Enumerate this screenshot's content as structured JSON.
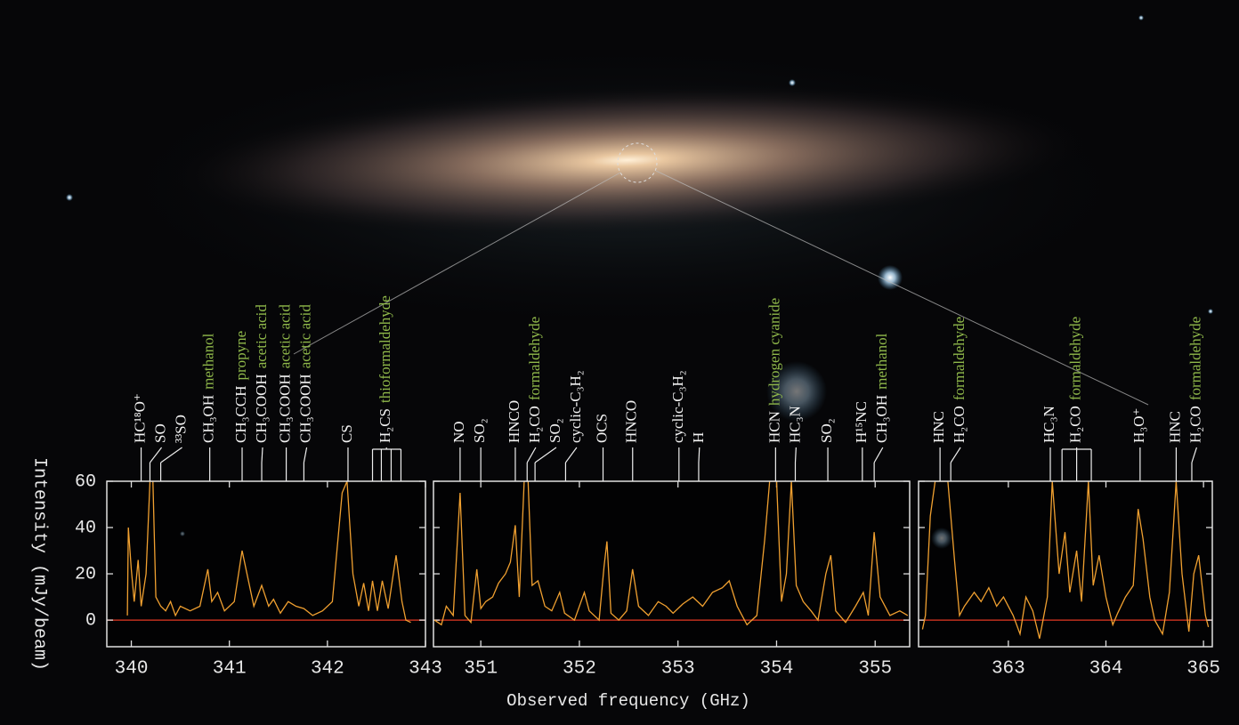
{
  "chart_data": [
    {
      "type": "line",
      "ylabel": "Intensity (mJy/beam)",
      "color": "#f0a030",
      "zero_line_color": "#c0301e",
      "xlim": [
        339.75,
        343.0
      ],
      "xticks": [
        340,
        341,
        342,
        343
      ],
      "ylim": [
        -11.5,
        60
      ],
      "yticks": [
        0,
        20,
        40,
        60
      ],
      "x": [
        339.96,
        339.97,
        340.0,
        340.03,
        340.07,
        340.1,
        340.15,
        340.19,
        340.22,
        340.25,
        340.3,
        340.35,
        340.4,
        340.45,
        340.5,
        340.6,
        340.7,
        340.78,
        340.82,
        340.88,
        340.95,
        341.05,
        341.13,
        341.18,
        341.25,
        341.33,
        341.4,
        341.45,
        341.52,
        341.6,
        341.68,
        341.76,
        341.85,
        341.95,
        342.05,
        342.15,
        342.2,
        342.26,
        342.32,
        342.37,
        342.42,
        342.46,
        342.51,
        342.56,
        342.62,
        342.7,
        342.76,
        342.8,
        342.85
      ],
      "values": [
        2,
        40,
        22,
        8,
        26,
        6,
        20,
        60,
        60,
        10,
        6,
        4,
        8,
        2,
        6,
        4,
        6,
        22,
        8,
        12,
        4,
        8,
        30,
        20,
        6,
        15,
        6,
        9,
        3,
        8,
        6,
        5,
        2,
        4,
        8,
        55,
        60,
        20,
        6,
        16,
        4,
        17,
        4,
        17,
        5,
        28,
        8,
        0,
        -1
      ],
      "lines": [
        {
          "formula": "HC¹⁸O⁺",
          "x": 340.1
        },
        {
          "formula": "SO",
          "x": 340.19
        },
        {
          "formula": "³³SO",
          "x": 340.3
        },
        {
          "formula": "CH₃OH",
          "name": "methanol",
          "x": 340.8
        },
        {
          "formula": "CH₃CCH",
          "name": "propyne",
          "x": 341.13
        },
        {
          "formula": "CH₃COOH",
          "name": "acetic acid",
          "x": 341.33
        },
        {
          "formula": "CH₃COOH",
          "name": "acetic acid",
          "x": 341.58
        },
        {
          "formula": "CH₃COOH",
          "name": "acetic acid",
          "x": 341.76
        },
        {
          "formula": "CS",
          "x": 342.21
        },
        {
          "formula": "H₂CS",
          "name": "thioformaldehyde",
          "x": [
            342.46,
            342.55,
            342.65,
            342.75
          ]
        }
      ]
    },
    {
      "type": "line",
      "xlabel": "Observed frequency (GHz)",
      "color": "#f0a030",
      "zero_line_color": "#c0301e",
      "xlim": [
        350.52,
        355.35
      ],
      "xticks": [
        351,
        352,
        353,
        354,
        355
      ],
      "ylim": [
        -11.5,
        60
      ],
      "yticks": [
        0,
        20,
        40,
        60
      ],
      "x": [
        350.53,
        350.6,
        350.65,
        350.72,
        350.79,
        350.84,
        350.9,
        350.96,
        351.0,
        351.05,
        351.12,
        351.18,
        351.25,
        351.3,
        351.35,
        351.39,
        351.44,
        351.48,
        351.52,
        351.58,
        351.65,
        351.72,
        351.8,
        351.85,
        351.95,
        352.05,
        352.1,
        352.2,
        352.25,
        352.28,
        352.32,
        352.4,
        352.48,
        352.54,
        352.6,
        352.7,
        352.8,
        352.88,
        352.95,
        353.05,
        353.15,
        353.25,
        353.35,
        353.45,
        353.52,
        353.6,
        353.7,
        353.8,
        353.88,
        353.93,
        354.0,
        354.05,
        354.1,
        354.15,
        354.2,
        354.27,
        354.35,
        354.42,
        354.5,
        354.55,
        354.6,
        354.7,
        354.8,
        354.88,
        354.93,
        354.99,
        355.05,
        355.15,
        355.25,
        355.33
      ],
      "values": [
        0,
        -2,
        6,
        2,
        55,
        2,
        -1,
        22,
        5,
        8,
        10,
        16,
        20,
        25,
        41,
        10,
        60,
        60,
        15,
        17,
        6,
        4,
        12,
        3,
        0,
        12,
        4,
        0,
        23,
        34,
        3,
        0,
        4,
        22,
        6,
        2,
        8,
        6,
        3,
        7,
        10,
        6,
        12,
        14,
        17,
        6,
        -2,
        2,
        35,
        60,
        60,
        8,
        20,
        60,
        15,
        8,
        4,
        0,
        20,
        28,
        4,
        -1,
        6,
        12,
        2,
        38,
        10,
        2,
        4,
        2
      ],
      "lines": [
        {
          "formula": "NO",
          "x": 350.79
        },
        {
          "formula": "SO₂",
          "x": 351.0
        },
        {
          "formula": "HNCO",
          "x": 351.35
        },
        {
          "formula": "H₂CO",
          "name": "formaldehyde",
          "x": 351.47
        },
        {
          "formula": "SO₂",
          "x": 351.55
        },
        {
          "formula": "cyclic-C₃H₂",
          "x": 351.86
        },
        {
          "formula": "OCS",
          "x": 352.24
        },
        {
          "formula": "HNCO",
          "x": 352.54
        },
        {
          "formula": "cyclic-C₃H₂",
          "x": 353.01
        },
        {
          "formula": "H",
          "x": 353.21
        },
        {
          "formula": "HCN",
          "name": "hydrogen cyanide",
          "x": 353.99
        },
        {
          "formula": "HC₃N",
          "x": 354.19
        },
        {
          "formula": "SO₂",
          "x": 354.52
        },
        {
          "formula": "H¹⁵NC",
          "x": 354.87
        },
        {
          "formula": "CH₃OH",
          "name": "methanol",
          "x": 354.99
        }
      ]
    },
    {
      "type": "line",
      "color": "#f0a030",
      "zero_line_color": "#c0301e",
      "xlim": [
        362.08,
        365.09
      ],
      "xticks": [
        363,
        364,
        365
      ],
      "ylim": [
        -11.5,
        60
      ],
      "yticks": [
        0,
        20,
        40,
        60
      ],
      "x": [
        362.12,
        362.15,
        362.2,
        362.25,
        362.38,
        362.45,
        362.5,
        362.55,
        362.65,
        362.72,
        362.8,
        362.88,
        362.95,
        363.05,
        363.12,
        363.18,
        363.25,
        363.32,
        363.4,
        363.45,
        363.52,
        363.58,
        363.63,
        363.7,
        363.75,
        363.82,
        363.87,
        363.93,
        364.0,
        364.07,
        364.12,
        364.2,
        364.28,
        364.33,
        364.38,
        364.45,
        364.5,
        364.58,
        364.65,
        364.72,
        364.78,
        364.85,
        364.9,
        364.95,
        365.02,
        365.05
      ],
      "values": [
        -4,
        2,
        45,
        60,
        60,
        25,
        2,
        6,
        12,
        8,
        14,
        6,
        10,
        2,
        -6,
        10,
        4,
        -8,
        10,
        60,
        20,
        38,
        12,
        30,
        8,
        60,
        15,
        28,
        10,
        -2,
        3,
        10,
        15,
        48,
        35,
        10,
        0,
        -6,
        12,
        60,
        20,
        -5,
        20,
        28,
        2,
        -3
      ],
      "lines": [
        {
          "formula": "HNC",
          "x": 362.3
        },
        {
          "formula": "H₂CO",
          "name": "formaldehyde",
          "x": 362.41
        },
        {
          "formula": "HC₃N",
          "x": 363.43
        },
        {
          "formula": "H₂CO",
          "name": "formaldehyde",
          "x": [
            363.55,
            363.7,
            363.85
          ]
        },
        {
          "formula": "H₃O⁺",
          "x": 364.35
        },
        {
          "formula": "HNC",
          "x": 364.72
        },
        {
          "formula": "H₂CO",
          "name": "formaldehyde",
          "x": 364.88
        }
      ]
    }
  ]
}
